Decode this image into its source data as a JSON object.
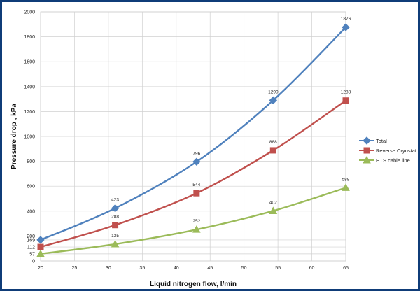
{
  "chart_data": {
    "type": "line",
    "xlabel": "Liquid nitrogen flow, l/min",
    "ylabel": "Pressure drop , kPa",
    "xlim": [
      20,
      65
    ],
    "ylim": [
      0,
      2000
    ],
    "x_ticks": [
      20,
      25,
      30,
      35,
      40,
      45,
      50,
      55,
      60,
      65
    ],
    "y_ticks": [
      0,
      57,
      112,
      169,
      200,
      400,
      600,
      800,
      1000,
      1200,
      1400,
      1600,
      1800,
      2000
    ],
    "grid": true,
    "legend_position": "right",
    "x": [
      20,
      31,
      43,
      54.3,
      65
    ],
    "series": [
      {
        "name": "Total",
        "color": "#4f81bd",
        "marker": "diamond",
        "values": [
          169,
          423,
          796,
          1290,
          1876
        ],
        "labels": [
          "",
          "423",
          "796",
          "1290",
          "1876"
        ]
      },
      {
        "name": "Reverse Cryostat",
        "color": "#c0504d",
        "marker": "square",
        "values": [
          112,
          288,
          544,
          888,
          1288
        ],
        "labels": [
          "",
          "288",
          "544",
          "888",
          "1288"
        ]
      },
      {
        "name": "HTS cable line",
        "color": "#9bbb59",
        "marker": "triangle",
        "values": [
          57,
          135,
          252,
          402,
          588
        ],
        "labels": [
          "",
          "135",
          "252",
          "402",
          "588"
        ]
      }
    ]
  }
}
